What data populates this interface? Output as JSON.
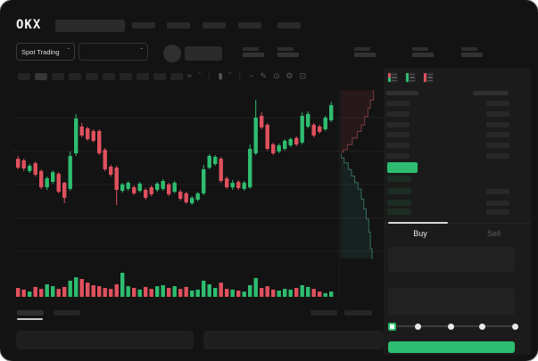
{
  "app": {
    "logo": "OKX"
  },
  "header": {
    "nav_placeholder_count": 5,
    "search_placeholder": ""
  },
  "subheader": {
    "market_type_label": "Spot Trading",
    "chevron_glyph": "ˇ",
    "stats_group_count": 5
  },
  "toolbar": {
    "timeframe_count": 10,
    "active_timeframe_index": 1,
    "icons": [
      {
        "name": "indicators-icon",
        "glyph": "≈",
        "interactable": true
      },
      {
        "name": "chevron-down-icon",
        "glyph": "ˇ",
        "interactable": true
      },
      {
        "name": "divider",
        "glyph": "│",
        "interactable": false
      },
      {
        "name": "chart-style-icon",
        "glyph": "▮",
        "interactable": true
      },
      {
        "name": "chevron-down-icon",
        "glyph": "ˇ",
        "interactable": true
      },
      {
        "name": "divider",
        "glyph": "│",
        "interactable": false
      },
      {
        "name": "line-tool-icon",
        "glyph": "~",
        "interactable": true
      },
      {
        "name": "draw-icon",
        "glyph": "✎",
        "interactable": true
      },
      {
        "name": "camera-icon",
        "glyph": "⊙",
        "interactable": true
      },
      {
        "name": "settings-icon",
        "glyph": "⚙",
        "interactable": true
      },
      {
        "name": "fullscreen-icon",
        "glyph": "⊡",
        "interactable": true
      }
    ]
  },
  "chart_data": {
    "type": "candlestick",
    "note": "no numeric axis labels are visible in the UI; prices normalized to 0-100 scale read from candle pixel positions",
    "ylim": [
      0,
      100
    ],
    "grid": true,
    "colors": {
      "up": "#2ebd70",
      "down": "#e0515e"
    },
    "candle_format": [
      "open",
      "high",
      "low",
      "close"
    ],
    "candles": [
      [
        60.5,
        62.2,
        54.1,
        55.1
      ],
      [
        59.5,
        60.5,
        53.0,
        54.6
      ],
      [
        53.0,
        57.3,
        51.9,
        56.2
      ],
      [
        57.8,
        58.9,
        49.7,
        50.8
      ],
      [
        53.0,
        54.1,
        42.2,
        43.2
      ],
      [
        43.2,
        49.7,
        41.6,
        48.6
      ],
      [
        46.5,
        53.5,
        45.4,
        52.4
      ],
      [
        51.4,
        52.4,
        39.5,
        40.5
      ],
      [
        45.9,
        46.5,
        33.5,
        36.8
      ],
      [
        42.2,
        64.9,
        41.1,
        62.2
      ],
      [
        63.8,
        87.6,
        62.2,
        84.9
      ],
      [
        80.0,
        82.2,
        73.5,
        74.6
      ],
      [
        78.9,
        80.0,
        71.4,
        72.4
      ],
      [
        77.3,
        78.4,
        70.3,
        71.4
      ],
      [
        77.3,
        78.4,
        62.7,
        63.8
      ],
      [
        65.9,
        67.0,
        53.0,
        54.1
      ],
      [
        55.7,
        56.8,
        49.7,
        50.8
      ],
      [
        55.1,
        56.2,
        32.4,
        41.6
      ],
      [
        41.1,
        45.9,
        40.0,
        44.9
      ],
      [
        42.2,
        47.0,
        41.1,
        45.9
      ],
      [
        43.2,
        44.3,
        38.4,
        39.5
      ],
      [
        41.1,
        46.5,
        40.0,
        45.4
      ],
      [
        41.6,
        42.7,
        35.7,
        36.8
      ],
      [
        43.2,
        44.3,
        37.8,
        38.9
      ],
      [
        41.6,
        46.5,
        40.5,
        45.4
      ],
      [
        42.2,
        48.1,
        41.1,
        47.0
      ],
      [
        44.9,
        45.9,
        37.8,
        38.9
      ],
      [
        40.5,
        47.0,
        39.5,
        45.9
      ],
      [
        40.5,
        41.6,
        35.1,
        36.2
      ],
      [
        39.5,
        40.5,
        33.0,
        34.1
      ],
      [
        33.5,
        37.8,
        32.4,
        36.8
      ],
      [
        35.7,
        40.5,
        34.6,
        39.5
      ],
      [
        39.5,
        56.8,
        38.4,
        54.1
      ],
      [
        55.1,
        63.2,
        54.1,
        62.2
      ],
      [
        57.3,
        62.7,
        56.2,
        61.6
      ],
      [
        60.5,
        61.6,
        45.9,
        47.0
      ],
      [
        48.6,
        49.7,
        42.2,
        43.2
      ],
      [
        43.2,
        47.6,
        41.6,
        45.9
      ],
      [
        46.5,
        47.6,
        41.6,
        42.7
      ],
      [
        42.2,
        47.0,
        41.1,
        45.9
      ],
      [
        43.2,
        69.2,
        42.2,
        66.5
      ],
      [
        63.8,
        96.2,
        62.7,
        85.4
      ],
      [
        86.5,
        88.6,
        78.4,
        79.5
      ],
      [
        81.1,
        82.2,
        65.4,
        66.5
      ],
      [
        69.2,
        70.3,
        62.7,
        63.8
      ],
      [
        64.9,
        69.7,
        63.8,
        68.6
      ],
      [
        66.5,
        72.4,
        65.4,
        71.4
      ],
      [
        68.6,
        73.5,
        67.6,
        72.4
      ],
      [
        73.0,
        74.1,
        68.1,
        69.2
      ],
      [
        70.3,
        88.6,
        69.2,
        86.5
      ],
      [
        80.0,
        89.2,
        78.9,
        87.6
      ],
      [
        81.1,
        82.2,
        73.5,
        74.6
      ],
      [
        80.0,
        81.1,
        75.7,
        76.8
      ],
      [
        78.4,
        86.5,
        77.3,
        85.4
      ],
      [
        83.8,
        95.1,
        82.7,
        93.0
      ]
    ],
    "volumes": [
      37,
      30,
      22,
      41,
      33,
      52,
      44,
      33,
      41,
      67,
      81,
      74,
      59,
      48,
      44,
      37,
      33,
      52,
      100,
      44,
      37,
      30,
      41,
      33,
      44,
      48,
      37,
      44,
      33,
      41,
      26,
      30,
      67,
      52,
      37,
      59,
      33,
      30,
      26,
      22,
      48,
      78,
      37,
      44,
      30,
      26,
      33,
      30,
      37,
      48,
      41,
      33,
      22,
      15,
      22
    ],
    "depth_profile": {
      "point_format": [
        "price",
        "depth_pct"
      ],
      "asks": [
        [
          102,
          80
        ],
        [
          96,
          72
        ],
        [
          91,
          66
        ],
        [
          86,
          58
        ],
        [
          81,
          50
        ],
        [
          77,
          40
        ],
        [
          73,
          28
        ],
        [
          69,
          16
        ],
        [
          66,
          6
        ],
        [
          64.5,
          1
        ]
      ],
      "bids": [
        [
          63.5,
          1
        ],
        [
          61,
          8
        ],
        [
          58,
          18
        ],
        [
          54,
          26
        ],
        [
          50,
          34
        ],
        [
          46,
          42
        ],
        [
          42,
          50
        ],
        [
          36,
          56
        ],
        [
          30,
          62
        ],
        [
          24,
          68
        ],
        [
          16,
          72
        ],
        [
          6,
          76
        ],
        [
          0,
          78
        ]
      ]
    }
  },
  "orderbook": {
    "view_icons": [
      {
        "name": "book-both-icon",
        "colors": [
          "#e0515e",
          "#2ebd70"
        ]
      },
      {
        "name": "book-bids-icon",
        "colors": [
          "#2ebd70",
          "#2ebd70"
        ]
      },
      {
        "name": "book-asks-icon",
        "colors": [
          "#e0515e",
          "#e0515e"
        ]
      }
    ],
    "ask_row_count": 6,
    "bid_row_count": 4,
    "last_price_highlight_color": "#2ebd70"
  },
  "trade_panel": {
    "tabs": [
      {
        "label": "Buy",
        "active": true
      },
      {
        "label": "Sell",
        "active": false
      }
    ],
    "slider_stop_count": 5,
    "buy_button_label": "",
    "buy_button_color": "#2ebd70"
  },
  "bottom_section": {
    "tab_count": 2,
    "active_tab_index": 0,
    "chip_count": 2,
    "panel_count": 2
  }
}
